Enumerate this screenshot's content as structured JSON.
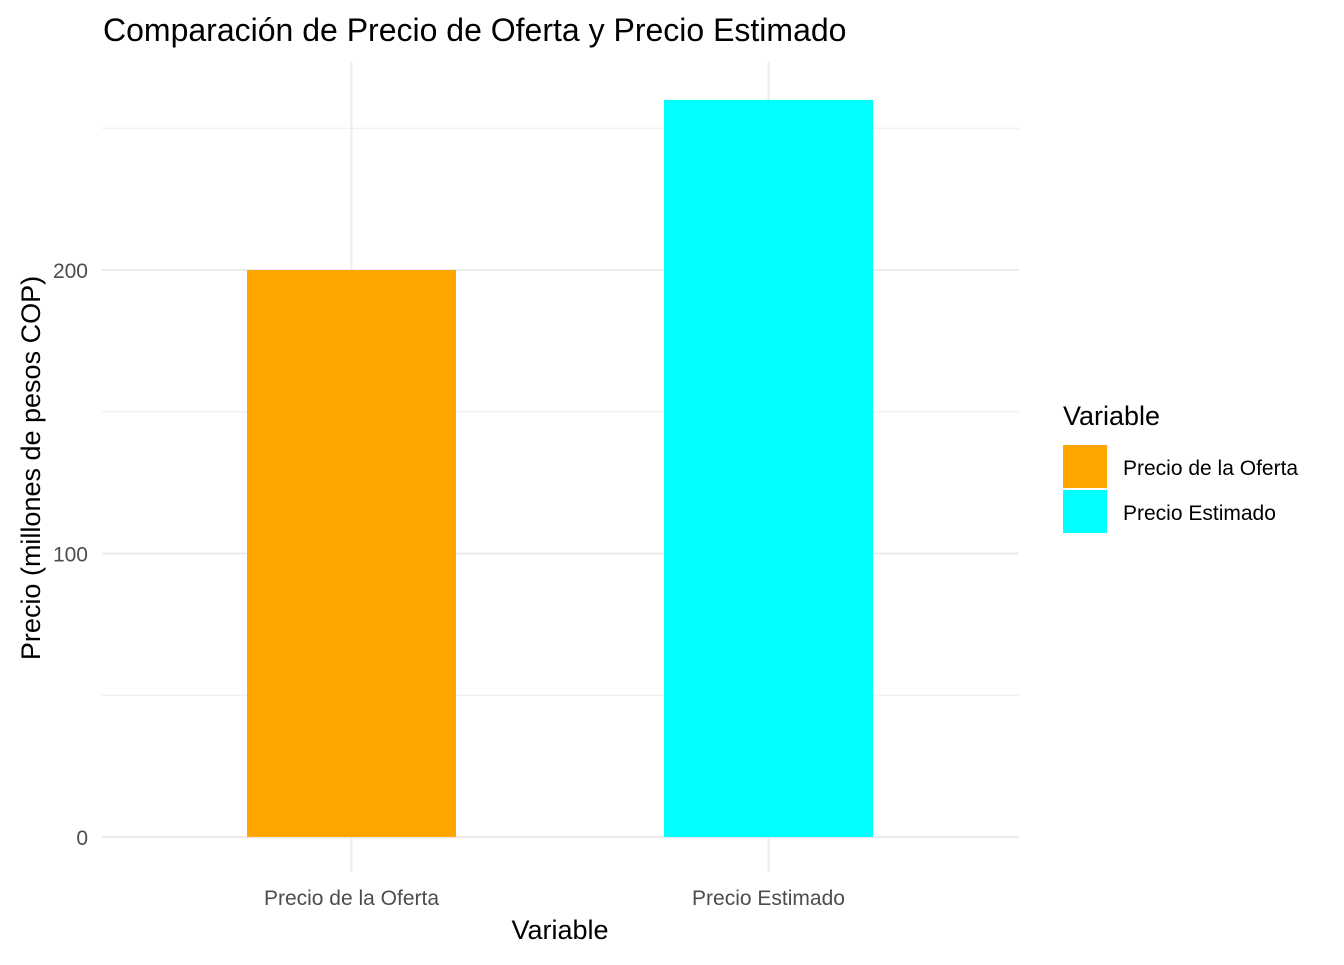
{
  "chart_data": {
    "type": "bar",
    "title": "Comparación de Precio de Oferta y Precio Estimado",
    "xlabel": "Variable",
    "ylabel": "Precio (millones de pesos COP)",
    "categories": [
      "Precio de la Oferta",
      "Precio Estimado"
    ],
    "values": [
      200,
      260
    ],
    "colors": [
      "#FFA500",
      "#00FFFF"
    ],
    "ylim": [
      0,
      260
    ],
    "y_ticks": [
      0,
      100,
      200
    ],
    "grid": true,
    "legend": {
      "title": "Variable",
      "position": "right",
      "items": [
        {
          "label": "Precio de la Oferta",
          "color": "#FFA500"
        },
        {
          "label": "Precio Estimado",
          "color": "#00FFFF"
        }
      ]
    }
  }
}
